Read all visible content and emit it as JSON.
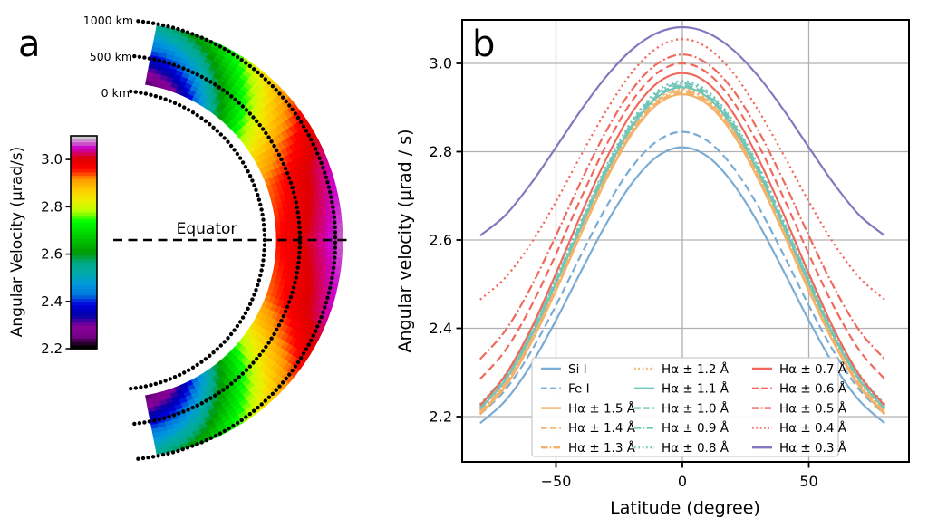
{
  "figure_title": "",
  "chart_data": [
    {
      "type": "heatmap",
      "panel_label": "a",
      "description": "Polar wedge map of solar chromospheric angular velocity vs latitude and height",
      "colorbar": {
        "label": "Angular Velocity (μrad/s)",
        "ticks": [
          3.0,
          2.8,
          2.6,
          2.4,
          2.2
        ],
        "vmin": 2.2,
        "vmax": 3.1,
        "colormap": "nipy_spectral"
      },
      "equator_label": "Equator",
      "height_labels": [
        "1000 km",
        "500 km",
        "0 km"
      ],
      "height_arcs_km": [
        1000,
        500,
        0
      ],
      "lat_range_deg": [
        -79,
        79
      ],
      "grid": {
        "lat_deg": [
          0,
          20,
          30,
          40,
          50,
          58,
          65,
          71,
          75,
          79
        ],
        "omega_inner_urad_s": [
          2.96,
          2.93,
          2.87,
          2.76,
          2.6,
          2.45,
          2.33,
          2.26,
          2.24,
          2.22
        ],
        "omega_outer_urad_s": [
          3.08,
          3.05,
          3.0,
          2.93,
          2.83,
          2.74,
          2.65,
          2.6,
          2.57,
          2.55
        ]
      },
      "units": "μrad/s"
    },
    {
      "type": "line",
      "panel_label": "b",
      "xlabel": "Latitude (degree)",
      "ylabel": "Angular velocity (μrad / s)",
      "xlim": [
        -88,
        88
      ],
      "ylim": [
        2.1,
        3.1
      ],
      "xticks": [
        -50,
        0,
        50
      ],
      "xtick_labels": [
        "−50",
        "0",
        "50"
      ],
      "yticks": [
        3.0,
        2.8,
        2.6,
        2.4,
        2.2
      ],
      "grid": "on",
      "legend_position": "lower center, 3 columns",
      "x_deg": [
        -80,
        -70,
        -60,
        -50,
        -40,
        -30,
        -20,
        -10,
        0,
        10,
        20,
        30,
        40,
        50,
        60,
        70,
        80
      ],
      "series": [
        {
          "label": "Si I",
          "color": "#7bacd4",
          "style": "solid",
          "values": [
            2.185,
            2.236,
            2.316,
            2.418,
            2.53,
            2.638,
            2.728,
            2.789,
            2.81,
            2.789,
            2.728,
            2.638,
            2.53,
            2.418,
            2.316,
            2.236,
            2.185
          ]
        },
        {
          "label": "Fe I",
          "color": "#7bacd4",
          "style": "dashed",
          "values": [
            2.205,
            2.261,
            2.346,
            2.452,
            2.567,
            2.676,
            2.765,
            2.824,
            2.845,
            2.824,
            2.765,
            2.676,
            2.567,
            2.452,
            2.346,
            2.261,
            2.205
          ]
        },
        {
          "label": "Hα ± 1.5 Å",
          "color": "#f4b269",
          "style": "solid",
          "values": [
            2.205,
            2.268,
            2.365,
            2.485,
            2.615,
            2.738,
            2.84,
            2.907,
            2.93,
            2.907,
            2.84,
            2.738,
            2.615,
            2.485,
            2.365,
            2.268,
            2.205
          ]
        },
        {
          "label": "Hα ± 1.4 Å",
          "color": "#f4b269",
          "style": "dashed",
          "values": [
            2.208,
            2.272,
            2.369,
            2.49,
            2.619,
            2.743,
            2.844,
            2.911,
            2.934,
            2.911,
            2.844,
            2.743,
            2.619,
            2.49,
            2.369,
            2.272,
            2.208
          ]
        },
        {
          "label": "Hα ± 1.3 Å",
          "color": "#f4b269",
          "style": "dashdot",
          "values": [
            2.211,
            2.275,
            2.372,
            2.494,
            2.623,
            2.747,
            2.848,
            2.915,
            2.938,
            2.915,
            2.848,
            2.747,
            2.623,
            2.494,
            2.372,
            2.275,
            2.211
          ]
        },
        {
          "label": "Hα ± 1.2 Å",
          "color": "#f4b269",
          "style": "dotted",
          "values": [
            2.214,
            2.279,
            2.376,
            2.498,
            2.627,
            2.751,
            2.852,
            2.919,
            2.942,
            2.919,
            2.852,
            2.751,
            2.627,
            2.498,
            2.376,
            2.279,
            2.214
          ]
        },
        {
          "label": "Hα ± 1.1 Å",
          "color": "#72c6b8",
          "style": "solid",
          "values": [
            2.217,
            2.283,
            2.38,
            2.502,
            2.631,
            2.755,
            2.856,
            2.923,
            2.946,
            2.923,
            2.856,
            2.755,
            2.631,
            2.502,
            2.38,
            2.283,
            2.217
          ]
        },
        {
          "label": "Hα ± 1.0 Å",
          "color": "#72c6b8",
          "style": "dashed",
          "values": [
            2.22,
            2.287,
            2.384,
            2.506,
            2.635,
            2.759,
            2.86,
            2.927,
            2.95,
            2.927,
            2.86,
            2.759,
            2.635,
            2.506,
            2.384,
            2.287,
            2.22
          ]
        },
        {
          "label": "Hα ± 0.9 Å",
          "color": "#72c6b8",
          "style": "dashdot",
          "values": [
            2.224,
            2.291,
            2.389,
            2.511,
            2.64,
            2.764,
            2.865,
            2.932,
            2.955,
            2.932,
            2.865,
            2.764,
            2.64,
            2.511,
            2.389,
            2.291,
            2.224
          ]
        },
        {
          "label": "Hα ± 0.8 Å",
          "color": "#72c6b8",
          "style": "dotted",
          "values": [
            2.228,
            2.296,
            2.394,
            2.516,
            2.645,
            2.769,
            2.87,
            2.937,
            2.96,
            2.937,
            2.87,
            2.769,
            2.645,
            2.516,
            2.394,
            2.296,
            2.228
          ]
        },
        {
          "label": "Hα ± 0.7 Å",
          "color": "#f0695c",
          "style": "solid",
          "values": [
            2.225,
            2.294,
            2.397,
            2.524,
            2.659,
            2.785,
            2.888,
            2.955,
            2.978,
            2.955,
            2.888,
            2.785,
            2.659,
            2.524,
            2.397,
            2.294,
            2.225
          ]
        },
        {
          "label": "Hα ± 0.6 Å",
          "color": "#f0695c",
          "style": "dashed",
          "values": [
            2.285,
            2.35,
            2.448,
            2.568,
            2.696,
            2.816,
            2.914,
            2.978,
            3.0,
            2.978,
            2.914,
            2.816,
            2.696,
            2.568,
            2.448,
            2.35,
            2.285
          ]
        },
        {
          "label": "Hα ± 0.5 Å",
          "color": "#f0695c",
          "style": "dashdot",
          "values": [
            2.33,
            2.395,
            2.492,
            2.61,
            2.734,
            2.848,
            2.94,
            2.999,
            3.02,
            2.999,
            2.94,
            2.848,
            2.734,
            2.61,
            2.492,
            2.395,
            2.33
          ]
        },
        {
          "label": "Hα ± 0.4 Å",
          "color": "#f0695c",
          "style": "dotted",
          "values": [
            2.465,
            2.515,
            2.591,
            2.687,
            2.793,
            2.894,
            2.979,
            3.035,
            3.055,
            3.035,
            2.979,
            2.894,
            2.793,
            2.687,
            2.591,
            2.515,
            2.465
          ]
        },
        {
          "label": "Hα ± 0.3 Å",
          "color": "#8378bf",
          "style": "solid",
          "values": [
            2.61,
            2.656,
            2.727,
            2.81,
            2.895,
            2.971,
            3.031,
            3.069,
            3.082,
            3.069,
            3.031,
            2.971,
            2.895,
            2.81,
            2.727,
            2.656,
            2.61
          ]
        }
      ]
    }
  ]
}
